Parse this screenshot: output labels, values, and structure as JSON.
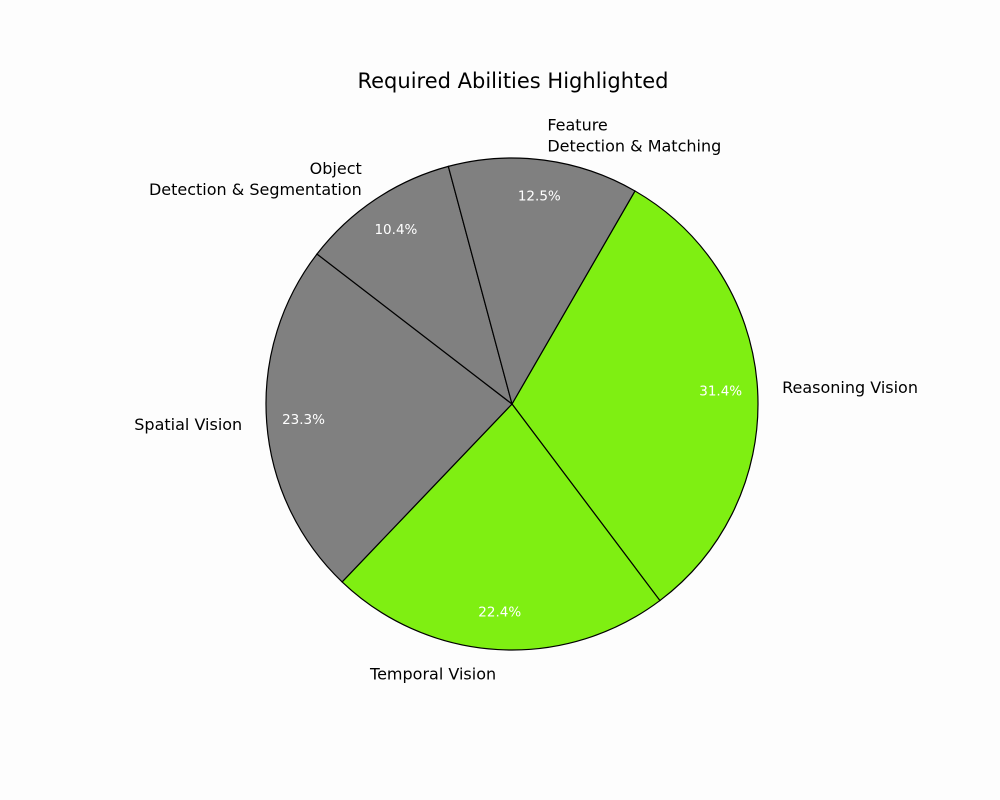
{
  "chart_data": {
    "type": "pie",
    "title": "Required Abilities Highlighted",
    "start_angle_deg": 60,
    "direction": "clockwise",
    "slices": [
      {
        "label": "Reasoning Vision",
        "value": 31.4,
        "value_label": "31.4%",
        "color": "#7FEF12",
        "label_lines": [
          "Reasoning Vision"
        ]
      },
      {
        "label": "Temporal Vision",
        "value": 22.4,
        "value_label": "22.4%",
        "color": "#7FEF12",
        "label_lines": [
          "Temporal Vision"
        ]
      },
      {
        "label": "Spatial Vision",
        "value": 23.3,
        "value_label": "23.3%",
        "color": "#808080",
        "label_lines": [
          "Spatial Vision"
        ]
      },
      {
        "label": "Object Detection & Segmentation",
        "value": 10.4,
        "value_label": "10.4%",
        "color": "#808080",
        "label_lines": [
          "Object",
          "Detection & Segmentation"
        ]
      },
      {
        "label": "Feature Detection & Matching",
        "value": 12.5,
        "value_label": "12.5%",
        "color": "#808080",
        "label_lines": [
          "Feature",
          "Detection & Matching"
        ]
      }
    ]
  }
}
